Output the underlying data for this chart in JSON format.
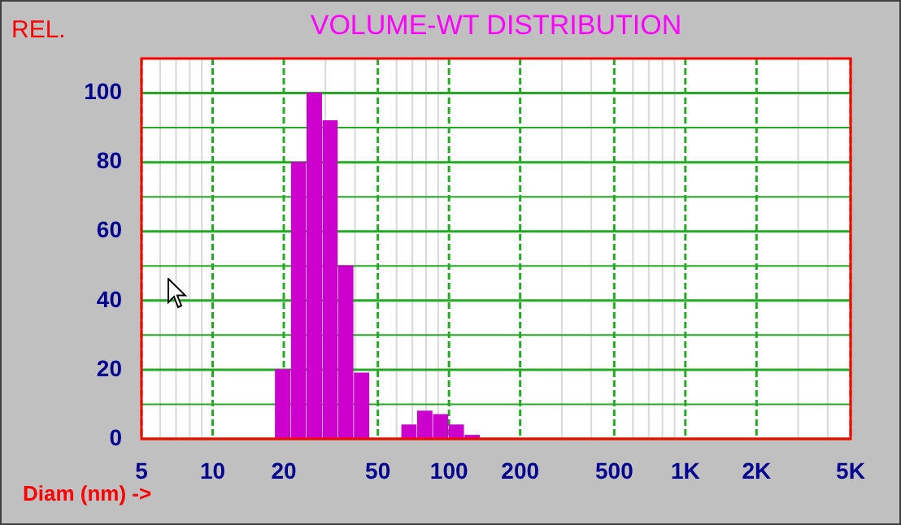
{
  "chart_data": {
    "type": "histogram",
    "title": "VOLUME-WT DISTRIBUTION",
    "ylabel": "REL.",
    "xlabel": "Diam (nm) ->",
    "bins": [
      18.3,
      21.4,
      24.9,
      29.1,
      33.9,
      39.5,
      46.1,
      53.8,
      62.7,
      73.1,
      85.3,
      99.5,
      116,
      135.3
    ],
    "values": [
      20,
      80,
      100,
      92,
      50,
      19,
      0,
      0,
      4,
      8,
      7,
      4,
      1
    ],
    "color": "#cc00cc",
    "log": "x",
    "grid": true,
    "xlim": [
      5,
      5000
    ],
    "xticks": [
      5,
      {
        "value": 6,
        "label": null
      },
      {
        "value": 7,
        "label": null
      },
      {
        "value": 8,
        "label": null
      },
      {
        "value": 9,
        "label": null
      },
      10,
      20,
      {
        "value": 30,
        "label": null
      },
      {
        "value": 40,
        "label": null
      },
      50,
      {
        "value": 60,
        "label": null
      },
      {
        "value": 70,
        "label": null
      },
      {
        "value": 80,
        "label": null
      },
      {
        "value": 90,
        "label": null
      },
      100,
      200,
      {
        "value": 300,
        "label": null
      },
      {
        "value": 400,
        "label": null
      },
      500,
      {
        "value": 600,
        "label": null
      },
      {
        "value": 700,
        "label": null
      },
      {
        "value": 800,
        "label": null
      },
      {
        "value": 900,
        "label": null
      },
      {
        "value": 1000,
        "label": "1K"
      },
      {
        "value": 2000,
        "label": "2K"
      },
      {
        "value": 3000,
        "label": null
      },
      {
        "value": 4000,
        "label": null
      },
      {
        "value": 5000,
        "label": "5K"
      }
    ],
    "ylim": [
      0,
      110
    ],
    "yticks": [
      0,
      {
        "value": 10,
        "label": null
      },
      20,
      {
        "value": 30,
        "label": null
      },
      40,
      {
        "value": 50,
        "label": null
      },
      60,
      {
        "value": 70,
        "label": null
      },
      80,
      {
        "value": 90,
        "label": null
      },
      100,
      {
        "value": 110,
        "label": null
      }
    ]
  }
}
